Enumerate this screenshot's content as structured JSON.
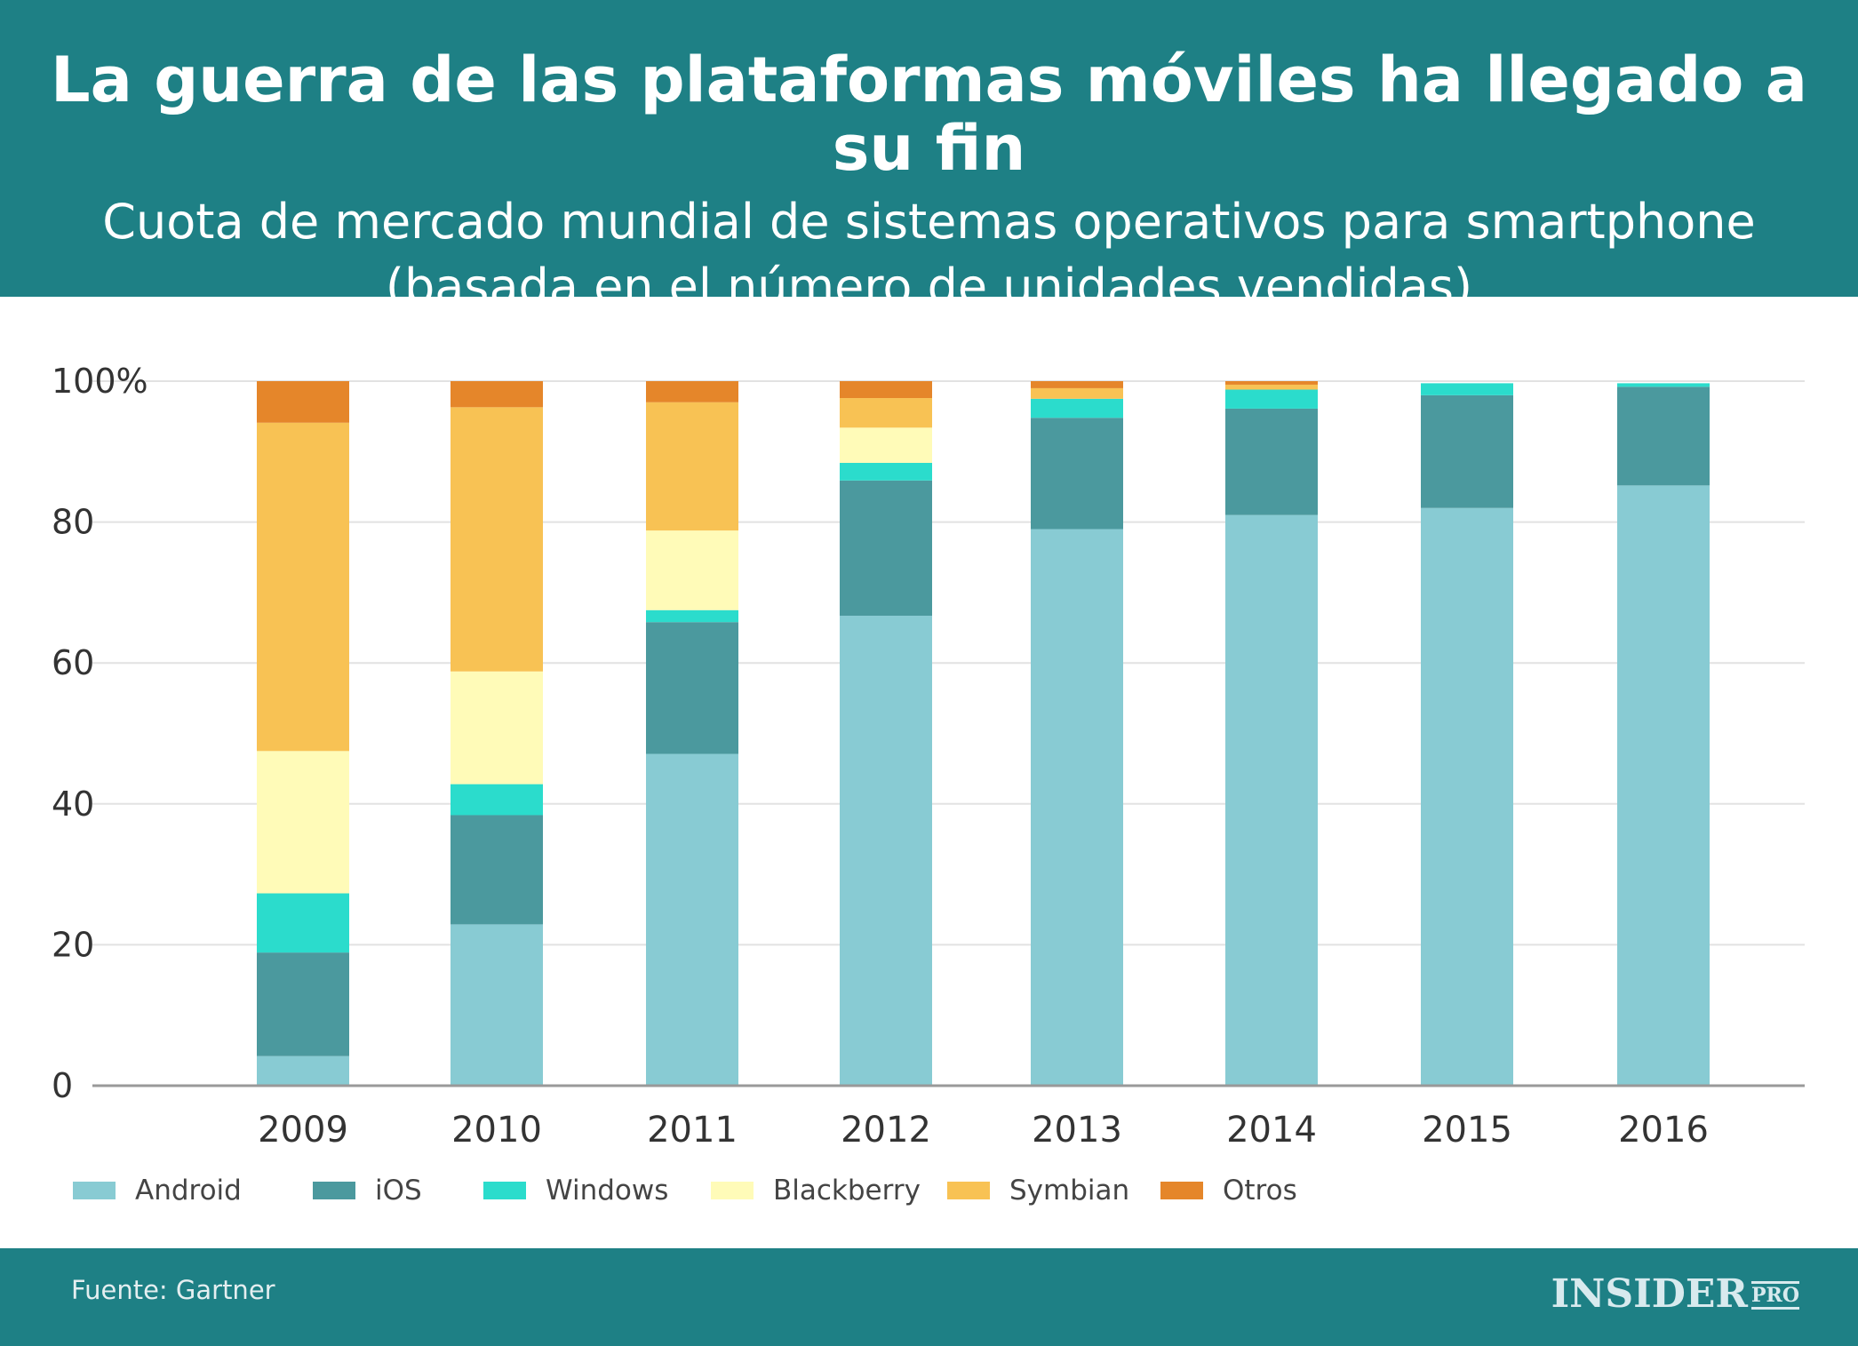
{
  "header": {
    "title": "La guerra de las plataformas móviles ha llegado a su fin",
    "subtitle_line1": "Cuota de mercado mundial de sistemas operativos para smartphone",
    "subtitle_line2": "(basada en el número de unidades vendidas)"
  },
  "footer": {
    "source": "Fuente: Gartner",
    "logo": "INSIDER",
    "logo_pro": "PRO"
  },
  "chart_data": {
    "type": "bar",
    "stacked": true,
    "categories": [
      "2009",
      "2010",
      "2011",
      "2012",
      "2013",
      "2014",
      "2015",
      "2016"
    ],
    "ylim": [
      0,
      100
    ],
    "yticks": [
      0,
      20,
      40,
      60,
      80,
      100
    ],
    "ytick_labels": [
      "0",
      "20",
      "40",
      "60",
      "80",
      "100%"
    ],
    "grid": true,
    "legend_position": "bottom-left",
    "series": [
      {
        "name": "Android",
        "color": "#88cbd3",
        "values": [
          4.2,
          22.9,
          47.1,
          66.7,
          79.0,
          81.0,
          82.0,
          85.2
        ]
      },
      {
        "name": "iOS",
        "color": "#4b999e",
        "values": [
          14.7,
          15.5,
          18.7,
          19.2,
          15.8,
          15.1,
          16.0,
          14.0
        ]
      },
      {
        "name": "Windows",
        "color": "#2bdccc",
        "values": [
          8.4,
          4.4,
          1.7,
          2.5,
          2.7,
          2.7,
          1.7,
          0.5
        ]
      },
      {
        "name": "Blackberry",
        "color": "#fffbb8",
        "values": [
          20.2,
          16.0,
          11.3,
          5.0,
          0,
          0,
          0,
          0
        ]
      },
      {
        "name": "Symbian",
        "color": "#f8c254",
        "values": [
          46.6,
          37.5,
          18.2,
          4.2,
          1.5,
          0.7,
          0,
          0
        ]
      },
      {
        "name": "Otros",
        "color": "#e5862a",
        "values": [
          5.9,
          3.7,
          3.0,
          2.4,
          1.0,
          0.5,
          0,
          0
        ]
      }
    ]
  }
}
